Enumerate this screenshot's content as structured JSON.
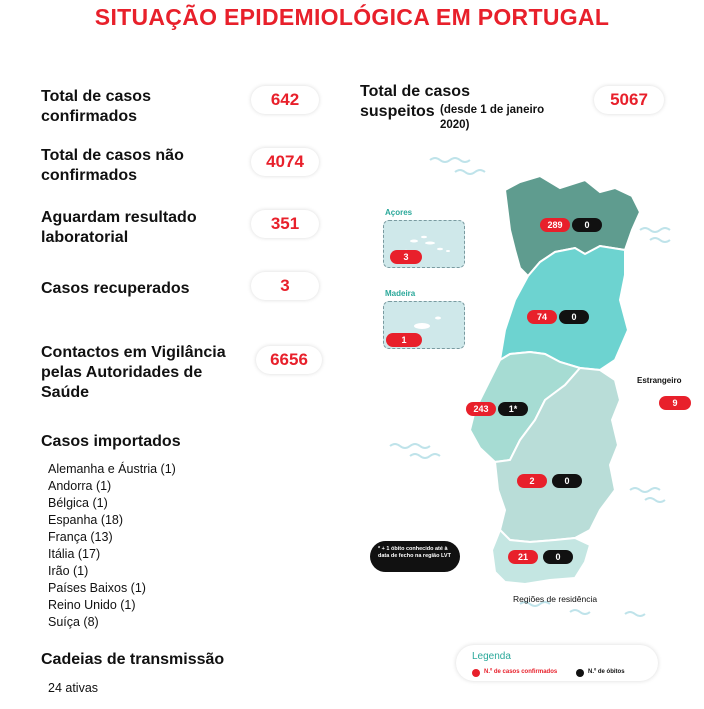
{
  "title": "SITUAÇÃO EPIDEMIOLÓGICA EM PORTUGAL",
  "stats": {
    "confirmados": {
      "label": "Total de casos confirmados",
      "value": "642"
    },
    "nao_confirmados": {
      "label": "Total de casos não confirmados",
      "value": "4074"
    },
    "aguardam": {
      "label": "Aguardam resultado laboratorial",
      "value": "351"
    },
    "recuperados": {
      "label": "Casos recuperados",
      "value": "3"
    },
    "vigilancia": {
      "label": "Contactos em Vigilância pelas Autoridades de Saúde",
      "value": "6656"
    },
    "suspeitos": {
      "label": "Total de casos suspeitos",
      "sub": "(desde 1 de janeiro 2020)",
      "value": "5067"
    }
  },
  "importados": {
    "heading": "Casos importados",
    "items": [
      "Alemanha e Áustria (1)",
      "Andorra (1)",
      "Bélgica (1)",
      "Espanha (18)",
      "França (13)",
      "Itália (17)",
      "Irão (1)",
      "Países Baixos (1)",
      "Reino Unido (1)",
      "Suíça (8)"
    ]
  },
  "cadeias": {
    "heading": "Cadeias de transmissão",
    "value": "24 ativas"
  },
  "map": {
    "regions": {
      "norte": {
        "cases": "289",
        "deaths": "0"
      },
      "centro": {
        "cases": "74",
        "deaths": "0"
      },
      "lvt": {
        "cases": "243",
        "deaths": "1*"
      },
      "alentejo": {
        "cases": "2",
        "deaths": "0"
      },
      "algarve": {
        "cases": "21",
        "deaths": "0"
      }
    },
    "acores": {
      "label": "Açores",
      "cases": "3"
    },
    "madeira": {
      "label": "Madeira",
      "cases": "1"
    },
    "estrangeiro": {
      "label": "Estrangeiro",
      "cases": "9"
    },
    "footnote": "* + 1 óbito conhecido até à data de fecho na região LVT",
    "caption": "Regiões de residência"
  },
  "legend": {
    "title": "Legenda",
    "confirmed": "N.º de casos confirmados",
    "deaths": "N.º de óbitos"
  },
  "colors": {
    "accent_red": "#e8202b",
    "norte": "#5f9c8f",
    "centro": "#6dd3d0",
    "lvt": "#a6dcd3",
    "alentejo": "#b9ddd8",
    "algarve": "#c4e6e2"
  }
}
